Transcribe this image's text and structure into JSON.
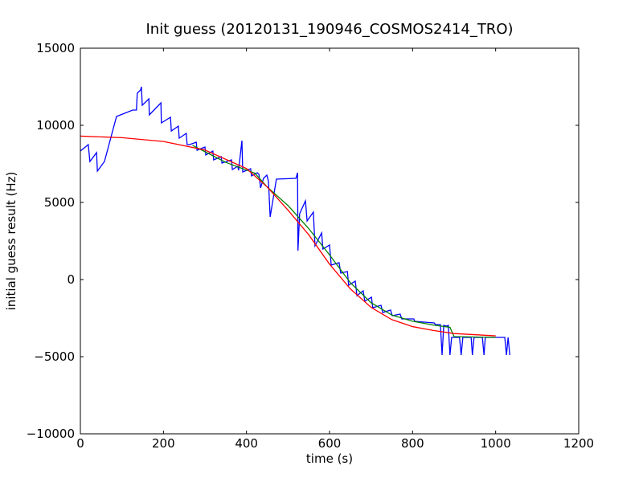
{
  "chart_data": {
    "type": "line",
    "title": "Init guess (20120131_190946_COSMOS2414_TRO)",
    "xlabel": "time (s)",
    "ylabel": "initial guess result (Hz)",
    "xlim": [
      0,
      1200
    ],
    "xticks": [
      0,
      200,
      400,
      600,
      800,
      1000,
      1200
    ],
    "ylim": [
      -10000,
      15000
    ],
    "yticks": [
      {
        "value": -10000,
        "label": "−10000"
      },
      {
        "value": -5000,
        "label": "−5000"
      },
      0,
      5000,
      10000,
      15000
    ],
    "grid": false,
    "series": [
      {
        "color": "#0000ff",
        "x": [
          0,
          19,
          23,
          39,
          41,
          58,
          87,
          126,
          135,
          137,
          145,
          147,
          149,
          165,
          166,
          194,
          195,
          217,
          219,
          236,
          238,
          255,
          257,
          263,
          279,
          281,
          300,
          302,
          319,
          321,
          339,
          341,
          364,
          366,
          379,
          381,
          389,
          391,
          410,
          412,
          426,
          430,
          434,
          441,
          449,
          453,
          457,
          472,
          519,
          523,
          524,
          528,
          542,
          546,
          561,
          565,
          581,
          584,
          600,
          604,
          623,
          627,
          643,
          646,
          662,
          666,
          681,
          685,
          701,
          704,
          724,
          728,
          747,
          751,
          770,
          774,
          803,
          805,
          852,
          855,
          867,
          871,
          875,
          882,
          886,
          890,
          894,
          913,
          917,
          921,
          941,
          944,
          948,
          968,
          972,
          975,
          1022,
          1026,
          1030,
          1034
        ],
        "values": [
          8333,
          8750,
          7656,
          8229,
          7031,
          7656,
          10573,
          10990,
          10990,
          12083,
          12292,
          12500,
          11302,
          11719,
          10677,
          11458,
          10156,
          10521,
          9635,
          9948,
          9167,
          9479,
          8750,
          8750,
          8906,
          8385,
          8594,
          8073,
          8333,
          7760,
          7969,
          7552,
          7760,
          7135,
          7344,
          7083,
          9010,
          6979,
          7188,
          6719,
          6927,
          6823,
          5938,
          6563,
          6771,
          6354,
          4063,
          6510,
          6563,
          6927,
          1875,
          4271,
          5104,
          3802,
          4375,
          2188,
          3021,
          1979,
          2240,
          938,
          1094,
          417,
          521,
          -365,
          -104,
          -1042,
          -729,
          -1406,
          -1146,
          -1823,
          -1667,
          -2135,
          -1979,
          -2344,
          -2240,
          -2552,
          -2552,
          -2708,
          -2813,
          -2917,
          -2917,
          -4896,
          -2969,
          -3021,
          -2969,
          -4896,
          -3750,
          -3750,
          -4896,
          -3750,
          -3750,
          -4896,
          -3750,
          -3750,
          -4896,
          -3750,
          -3750,
          -4896,
          -3750,
          -4896
        ]
      },
      {
        "color": "#008000",
        "x": [
          270,
          350,
          420,
          450,
          500,
          550,
          600,
          650,
          700,
          750,
          800,
          850,
          890,
          900,
          1000
        ],
        "values": [
          8700,
          7600,
          6900,
          6000,
          4800,
          3300,
          1600,
          -200,
          -1500,
          -2300,
          -2700,
          -2950,
          -3100,
          -3700,
          -3750
        ]
      },
      {
        "color": "#ff0000",
        "x": [
          0,
          100,
          200,
          300,
          400,
          450,
          500,
          550,
          600,
          650,
          700,
          750,
          800,
          850,
          900,
          1000
        ],
        "values": [
          9300,
          9200,
          8950,
          8400,
          7200,
          6000,
          4500,
          2900,
          1000,
          -600,
          -1800,
          -2600,
          -3050,
          -3300,
          -3500,
          -3650
        ]
      }
    ]
  }
}
